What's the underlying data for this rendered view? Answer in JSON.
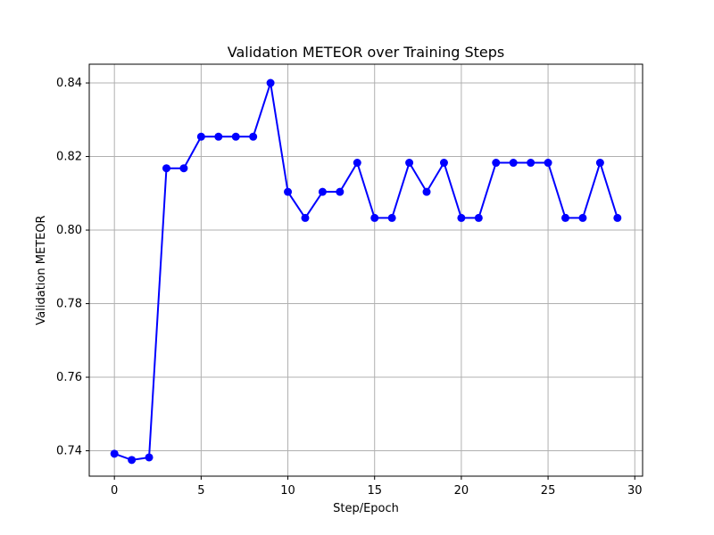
{
  "chart_data": {
    "type": "line",
    "title": "Validation METEOR over Training Steps",
    "xlabel": "Step/Epoch",
    "ylabel": "Validation METEOR",
    "x": [
      0,
      1,
      2,
      3,
      4,
      5,
      6,
      7,
      8,
      9,
      10,
      11,
      12,
      13,
      14,
      15,
      16,
      17,
      18,
      19,
      20,
      21,
      22,
      23,
      24,
      25,
      26,
      27,
      28,
      29
    ],
    "series": [
      {
        "name": "Validation METEOR",
        "values": [
          0.7392,
          0.7375,
          0.7382,
          0.8168,
          0.8168,
          0.8254,
          0.8254,
          0.8254,
          0.8254,
          0.84,
          0.8104,
          0.8033,
          0.8104,
          0.8104,
          0.8183,
          0.8033,
          0.8033,
          0.8183,
          0.8104,
          0.8183,
          0.8033,
          0.8033,
          0.8183,
          0.8183,
          0.8183,
          0.8183,
          0.8033,
          0.8033,
          0.8183,
          0.8033
        ],
        "color": "#0000ff",
        "marker": "circle"
      }
    ],
    "xlim": [
      -1.45,
      30.45
    ],
    "ylim": [
      0.7331,
      0.8451
    ],
    "xticks": [
      0,
      5,
      10,
      15,
      20,
      25,
      30
    ],
    "yticks": [
      0.74,
      0.76,
      0.78,
      0.8,
      0.82,
      0.84
    ],
    "xtick_labels": [
      "0",
      "5",
      "10",
      "15",
      "20",
      "25",
      "30"
    ],
    "ytick_labels": [
      "0.74",
      "0.76",
      "0.78",
      "0.80",
      "0.82",
      "0.84"
    ],
    "grid": true,
    "legend": "none"
  }
}
